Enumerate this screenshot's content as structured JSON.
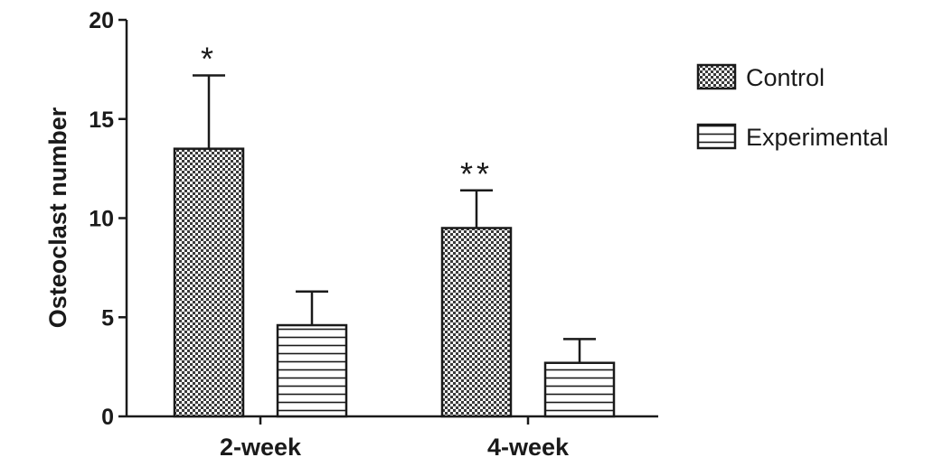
{
  "chart_data": {
    "type": "bar",
    "title": "",
    "xlabel": "",
    "ylabel": "Osteoclast number",
    "ylim": [
      0,
      20
    ],
    "yticks": [
      0,
      5,
      10,
      15,
      20
    ],
    "categories": [
      "2-week",
      "4-week"
    ],
    "series": [
      {
        "name": "Control",
        "values": [
          13.5,
          9.5
        ],
        "errors": [
          3.7,
          1.9
        ],
        "pattern": "checker",
        "significance": [
          "*",
          "**"
        ]
      },
      {
        "name": "Experimental",
        "values": [
          4.6,
          2.7
        ],
        "errors": [
          1.7,
          1.2
        ],
        "pattern": "horizontal-lines",
        "significance": [
          "",
          ""
        ]
      }
    ],
    "grid": false,
    "legend_position": "top-right",
    "colors": {
      "ink": "#1a1a1a",
      "background": "#ffffff"
    }
  }
}
